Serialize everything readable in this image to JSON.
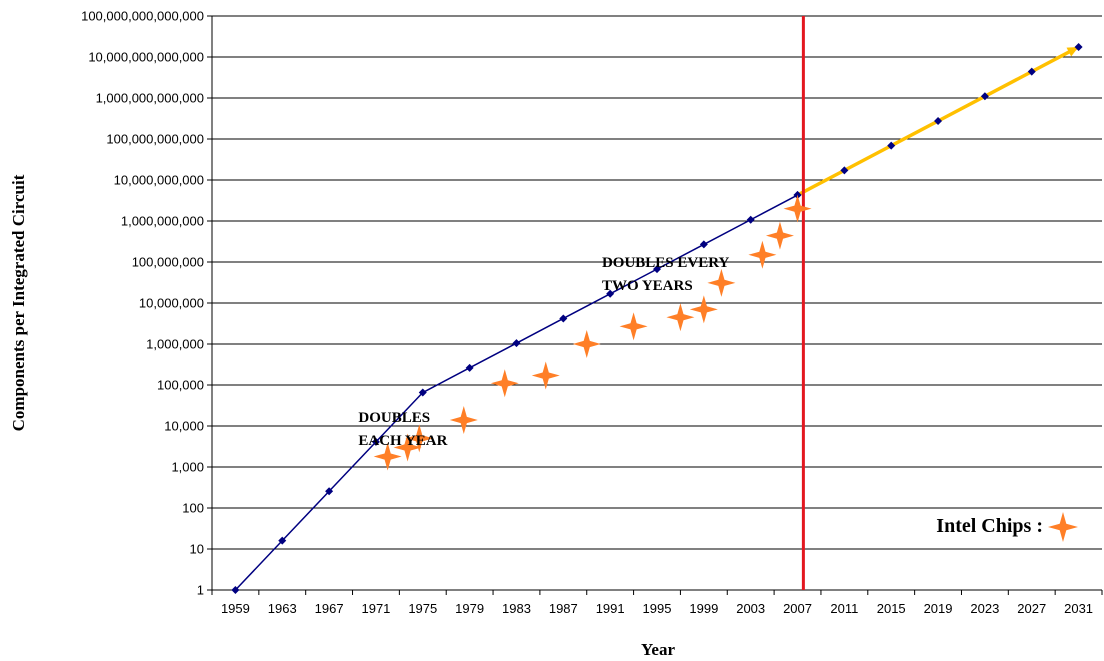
{
  "chart_data": {
    "type": "line",
    "title": "",
    "xlabel": "Year",
    "ylabel": "Components per Integrated Circuit",
    "y_scale": "log10",
    "ylim": [
      1,
      100000000000000
    ],
    "xlim": [
      1957,
      2033
    ],
    "y_tick_values": [
      1,
      10,
      100,
      1000,
      10000,
      100000,
      1000000,
      10000000,
      100000000,
      1000000000,
      10000000000,
      100000000000,
      1000000000000,
      10000000000000,
      100000000000000
    ],
    "y_tick_labels": [
      "1",
      "10",
      "100",
      "1,000",
      "10,000",
      "100,000",
      "1,000,000",
      "10,000,000",
      "100,000,000",
      "1,000,000,000",
      "10,000,000,000",
      "100,000,000,000",
      "1,000,000,000,000",
      "10,000,000,000,000",
      "100,000,000,000,000"
    ],
    "x_tick_labels": [
      "1959",
      "1963",
      "1967",
      "1971",
      "1975",
      "1979",
      "1983",
      "1987",
      "1991",
      "1995",
      "1999",
      "2003",
      "2007",
      "2011",
      "2015",
      "2019",
      "2023",
      "2027",
      "2031"
    ],
    "grid": "horizontal",
    "series": [
      {
        "color": "#000080",
        "marker": "diamond",
        "x": [
          1959,
          1963,
          1967,
          1971,
          1975,
          1979,
          1983,
          1987,
          1991,
          1995,
          1999,
          2003,
          2007
        ],
        "y": [
          1,
          16,
          256,
          4096,
          65536,
          262144,
          1048576,
          4194304,
          16777216,
          67108864,
          268435456,
          1073741824,
          4294967296
        ]
      },
      {
        "color": "#FFC000",
        "marker": "diamond",
        "marker_color": "#000080",
        "x": [
          2007,
          2011,
          2015,
          2019,
          2023,
          2027,
          2031
        ],
        "y": [
          4294967296,
          17179869184,
          68719476736,
          274877906944,
          1099511627776,
          4398046511104,
          17592186044416
        ]
      },
      {
        "name": "Intel Chips :",
        "color": "#FF7F27",
        "marker": "four-point-star",
        "x": [
          1972,
          1973.7,
          1974.7,
          1978.5,
          1982,
          1985.5,
          1989,
          1993,
          1997,
          1999,
          2000.5,
          2004,
          2005.5,
          2007
        ],
        "y": [
          1800,
          3000,
          5000,
          14000,
          110000,
          170000,
          1000000,
          2700000,
          4500000,
          7000000,
          31000000,
          150000000,
          440000000,
          2000000000
        ]
      }
    ],
    "annotations": [
      {
        "text_lines": [
          "DOUBLES",
          "EACH YEAR"
        ],
        "x": 1969.5,
        "y": 12500
      },
      {
        "text_lines": [
          "DOUBLES EVERY",
          "TWO YEARS"
        ],
        "x": 1990.3,
        "y": 75000000
      }
    ],
    "reference_lines": [
      {
        "axis": "x",
        "value": 2007.5,
        "color": "#E3171F"
      }
    ],
    "legend": {
      "position": "bottom-right",
      "label": "Intel Chips :"
    }
  }
}
